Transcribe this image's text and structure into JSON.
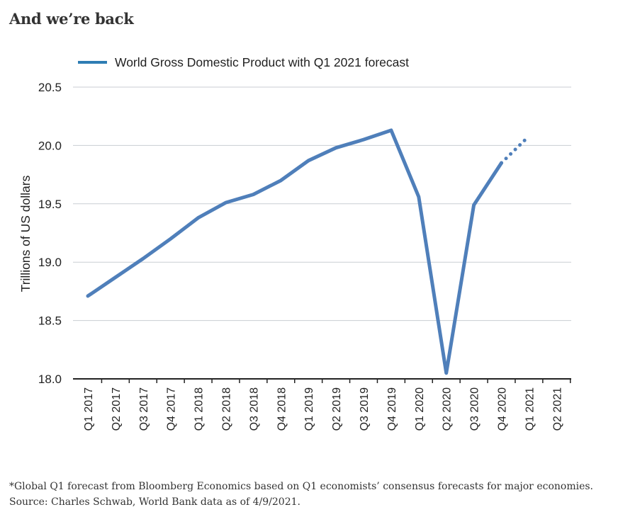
{
  "heading": "And we’re back",
  "chart_data": {
    "type": "line",
    "title": "",
    "ylabel": "Trillions of US dollars",
    "xlabel": "",
    "ylim": [
      18.0,
      20.5
    ],
    "yticks": [
      "18.0",
      "18.5",
      "19.0",
      "19.5",
      "20.0",
      "20.5"
    ],
    "yticks_values": [
      18.0,
      18.5,
      19.0,
      19.5,
      20.0,
      20.5
    ],
    "grid": true,
    "legend_position": "top-left",
    "categories": [
      "Q1 2017",
      "Q2 2017",
      "Q3 2017",
      "Q4 2017",
      "Q1 2018",
      "Q2 2018",
      "Q3 2018",
      "Q4 2018",
      "Q1 2019",
      "Q2 2019",
      "Q3 2019",
      "Q4 2019",
      "Q1 2020",
      "Q2 2020",
      "Q3 2020",
      "Q4 2020",
      "Q1 2021",
      "Q2 2021"
    ],
    "series": [
      {
        "name": "World Gross Domestic Product with Q1 2021 forecast",
        "color": "#4f7fba",
        "values": [
          18.71,
          18.87,
          19.03,
          19.2,
          19.38,
          19.51,
          19.58,
          19.7,
          19.87,
          19.98,
          20.05,
          20.13,
          19.56,
          18.05,
          19.49,
          19.85,
          20.08,
          null
        ],
        "forecast_from_index": 15
      }
    ]
  },
  "footnote": {
    "line1": "*Global Q1 forecast from Bloomberg Economics based on Q1 economists’ consensus forecasts for major economies.",
    "line2": "Source: Charles Schwab, World Bank data as of 4/9/2021."
  }
}
